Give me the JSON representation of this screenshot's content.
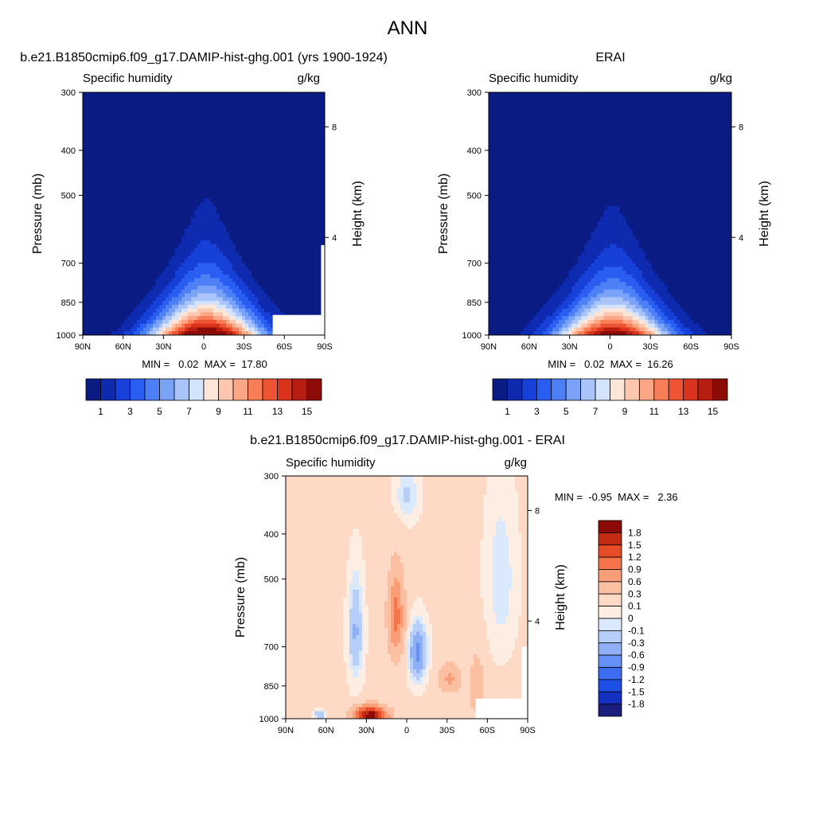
{
  "chart_data": [
    {
      "type": "heatmap",
      "title": "b.e21.B1850cmip6.f09_g17.DAMIP-hist-ghg.001 (yrs 1900-1924)",
      "left_label": "Specific humidity",
      "right_label": "g/kg",
      "ylabel": "Pressure (mb)",
      "y2label": "Height (km)",
      "xticks": [
        "90N",
        "60N",
        "30N",
        "0",
        "30S",
        "60S",
        "90S"
      ],
      "x_range": [
        90,
        -90
      ],
      "yticks": [
        "300",
        "400",
        "500",
        "700",
        "850",
        "1000"
      ],
      "y_range": [
        300,
        1000
      ],
      "y_scale": "log",
      "y2ticks": [
        "8",
        "4"
      ],
      "stats": "MIN =   0.02  MAX =  17.80",
      "min": 0.02,
      "max": 17.8,
      "missing_region": "near-surface below ~900 mb south of 50S (topography)"
    },
    {
      "type": "heatmap",
      "title": "ERAI",
      "left_label": "Specific humidity",
      "right_label": "g/kg",
      "ylabel": "Pressure (mb)",
      "y2label": "Height (km)",
      "xticks": [
        "90N",
        "60N",
        "30N",
        "0",
        "30S",
        "60S",
        "90S"
      ],
      "x_range": [
        90,
        -90
      ],
      "yticks": [
        "300",
        "400",
        "500",
        "700",
        "850",
        "1000"
      ],
      "y_range": [
        300,
        1000
      ],
      "y_scale": "log",
      "y2ticks": [
        "8",
        "4"
      ],
      "stats": "MIN =   0.02  MAX =  16.26",
      "min": 0.02,
      "max": 16.26
    },
    {
      "type": "heatmap",
      "title": "b.e21.B1850cmip6.f09_g17.DAMIP-hist-ghg.001 - ERAI",
      "left_label": "Specific humidity",
      "right_label": "g/kg",
      "ylabel": "Pressure (mb)",
      "y2label": "Height (km)",
      "xticks": [
        "90N",
        "60N",
        "30N",
        "0",
        "30S",
        "60S",
        "90S"
      ],
      "x_range": [
        90,
        -90
      ],
      "yticks": [
        "300",
        "400",
        "500",
        "700",
        "850",
        "1000"
      ],
      "y_range": [
        300,
        1000
      ],
      "y_scale": "log",
      "y2ticks": [
        "8",
        "4"
      ],
      "stats": "MIN =  -0.95  MAX =   2.36",
      "min": -0.95,
      "max": 2.36
    }
  ],
  "figure": {
    "title": "ANN"
  },
  "colorbar_abs": {
    "colors": [
      "#0a1c84",
      "#0e2bb0",
      "#1640d8",
      "#2a5df2",
      "#4d80f6",
      "#7aa3f7",
      "#a9c4f8",
      "#d3e3fb",
      "#fde6d8",
      "#fcc7ae",
      "#fba684",
      "#f87e58",
      "#ef5432",
      "#d9331c",
      "#b51e10",
      "#8c0b06"
    ],
    "labels": [
      "1",
      "3",
      "5",
      "7",
      "9",
      "11",
      "13",
      "15"
    ],
    "levels": [
      0.2,
      1,
      2,
      3,
      4,
      5,
      6,
      7,
      8,
      9,
      10,
      11,
      12,
      13,
      14,
      15
    ]
  },
  "colorbar_diff": {
    "colors": [
      "#1a1e7c",
      "#1330c0",
      "#1d4fe6",
      "#3b6cf3",
      "#6590f5",
      "#8fb0f6",
      "#b7cef8",
      "#dbe9fc",
      "#fdeee3",
      "#fdd9c6",
      "#fbbfa1",
      "#f99e77",
      "#f5744c",
      "#e84c26",
      "#c22c12",
      "#8c0b06"
    ],
    "labels": [
      "1.8",
      "1.5",
      "1.2",
      "0.9",
      "0.6",
      "0.3",
      "0.1",
      "0",
      "-0.1",
      "-0.3",
      "-0.6",
      "-0.9",
      "-1.2",
      "-1.5",
      "-1.8"
    ],
    "levels": [
      -1.8,
      -1.5,
      -1.2,
      -0.9,
      -0.6,
      -0.3,
      -0.1,
      0,
      0.1,
      0.3,
      0.6,
      0.9,
      1.2,
      1.5,
      1.8
    ]
  },
  "colors": {
    "missing": "#ffffff",
    "frame": "#000000"
  }
}
